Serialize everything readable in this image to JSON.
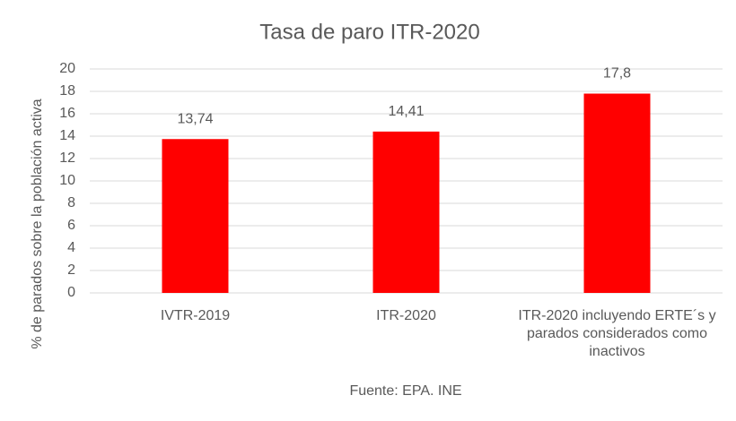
{
  "chart_data": {
    "type": "bar",
    "title": "Tasa de paro ITR-2020",
    "ylabel": "% de parados sobre la población activa",
    "source": "Fuente: EPA. INE",
    "categories": [
      "IVTR-2019",
      "ITR-2020",
      "ITR-2020 incluyendo ERTE´s y parados considerados como inactivos"
    ],
    "values": [
      13.74,
      14.41,
      17.8
    ],
    "value_labels": [
      "13,74",
      "14,41",
      "17,8"
    ],
    "color": "#ff0000",
    "ylim": [
      0,
      20
    ],
    "yticks": [
      0,
      2,
      4,
      6,
      8,
      10,
      12,
      14,
      16,
      18,
      20
    ],
    "grid": true
  }
}
